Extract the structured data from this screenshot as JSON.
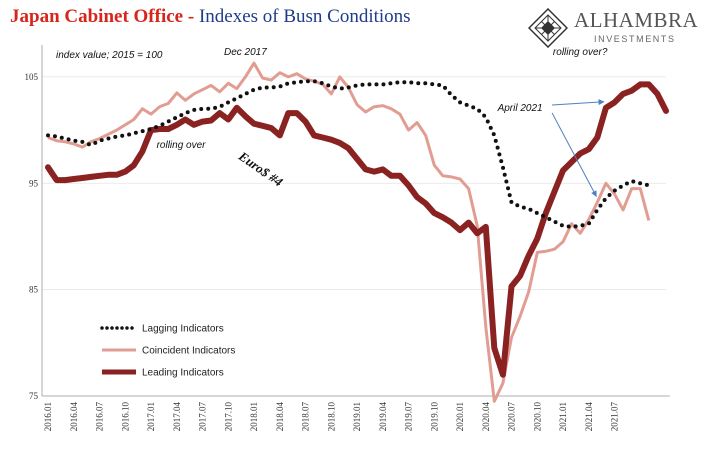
{
  "header": {
    "title_part1": "Japan Cabinet Office",
    "title_separator": " - ",
    "title_part2": "Indexes of Busn Conditions"
  },
  "logo": {
    "name": "ALHAMBRA",
    "subtitle": "INVESTMENTS"
  },
  "chart_data": {
    "type": "line",
    "subtitle": "index value; 2015 = 100",
    "ylim": [
      75,
      108
    ],
    "yticks": [
      75,
      85,
      95,
      105
    ],
    "x_start": "2016.01",
    "x_labels": [
      "2016.01",
      "2016.04",
      "2016.07",
      "2016.10",
      "2017.01",
      "2017.04",
      "2017.07",
      "2017.10",
      "2018.01",
      "2018.04",
      "2018.07",
      "2018.10",
      "2019.01",
      "2019.04",
      "2019.07",
      "2019.10",
      "2020.01",
      "2020.04",
      "2020.07",
      "2020.10",
      "2021.01",
      "2021.04",
      "2021.07"
    ],
    "grid": true,
    "legend_position": "bottom-left",
    "series": [
      {
        "name": "Lagging Indicators",
        "color": "#111111",
        "style": "dotted",
        "values": [
          99.5,
          99.4,
          99.2,
          99.0,
          98.9,
          98.6,
          99.0,
          99.2,
          99.4,
          99.5,
          99.7,
          99.9,
          100.1,
          100.4,
          100.8,
          101.2,
          101.6,
          101.9,
          102.0,
          102.0,
          102.2,
          102.6,
          103.0,
          103.4,
          103.8,
          104.0,
          104.0,
          104.1,
          104.4,
          104.5,
          104.6,
          104.6,
          104.4,
          104.1,
          103.9,
          104.0,
          104.2,
          104.3,
          104.3,
          104.3,
          104.4,
          104.5,
          104.5,
          104.4,
          104.4,
          104.3,
          104.2,
          103.3,
          102.6,
          102.3,
          102.0,
          101.2,
          99.5,
          96.5,
          93.2,
          92.8,
          92.6,
          92.2,
          91.8,
          91.4,
          91.0,
          90.9,
          91.0,
          91.2,
          92.5,
          93.6,
          94.3,
          94.8,
          95.2,
          95.0,
          94.8
        ]
      },
      {
        "name": "Coincident Indicators",
        "color": "#e29d93",
        "style": "solid",
        "values": [
          99.3,
          99.0,
          98.9,
          98.7,
          98.4,
          98.9,
          99.2,
          99.6,
          100.0,
          100.5,
          101.0,
          102.0,
          101.5,
          102.2,
          102.5,
          103.5,
          102.8,
          103.4,
          103.8,
          104.2,
          103.6,
          104.4,
          103.9,
          105.0,
          106.3,
          104.9,
          104.7,
          105.4,
          105.0,
          105.3,
          104.8,
          104.6,
          104.3,
          103.4,
          105.0,
          104.0,
          102.4,
          101.7,
          102.2,
          102.3,
          102.0,
          101.5,
          100.0,
          100.7,
          99.5,
          96.7,
          95.7,
          95.6,
          95.4,
          94.5,
          91.0,
          81.5,
          74.5,
          76.2,
          80.5,
          82.5,
          84.8,
          88.5,
          88.6,
          88.8,
          89.5,
          91.2,
          90.3,
          91.6,
          93.2,
          95.0,
          94.0,
          92.5,
          94.5,
          94.5,
          91.5
        ]
      },
      {
        "name": "Leading Indicators",
        "color": "#8b2222",
        "style": "solid",
        "values": [
          96.5,
          95.3,
          95.3,
          95.4,
          95.5,
          95.6,
          95.7,
          95.8,
          95.8,
          96.1,
          96.7,
          98.0,
          100.0,
          100.1,
          100.1,
          100.5,
          101.0,
          100.5,
          100.8,
          100.9,
          101.6,
          101.0,
          102.1,
          101.3,
          100.6,
          100.4,
          100.2,
          99.5,
          101.6,
          101.6,
          100.8,
          99.5,
          99.3,
          99.1,
          98.8,
          98.3,
          97.3,
          96.3,
          96.1,
          96.3,
          95.7,
          95.7,
          94.8,
          93.7,
          93.1,
          92.2,
          91.8,
          91.3,
          90.6,
          91.3,
          90.3,
          90.9,
          79.5,
          77.0,
          85.3,
          86.3,
          88.2,
          89.8,
          92.2,
          94.2,
          96.2,
          97.0,
          97.8,
          98.2,
          99.3,
          102.1,
          102.6,
          103.4,
          103.7,
          104.3,
          104.3,
          103.4,
          101.8
        ]
      }
    ],
    "annotations": [
      {
        "text": "Dec 2017",
        "at_index": 23,
        "at_value": 106.3
      },
      {
        "text": "rolling over",
        "at_index": 15.5,
        "at_value": 98.3
      },
      {
        "text": "Euro$ #4",
        "at_index": 24.5,
        "at_value": 96.0,
        "color": "#d8251b"
      },
      {
        "text": "April 2021",
        "at_index": 55,
        "at_value": 101.8
      },
      {
        "text": "rolling over?",
        "at_index": 62,
        "at_value": 106.5
      }
    ]
  }
}
